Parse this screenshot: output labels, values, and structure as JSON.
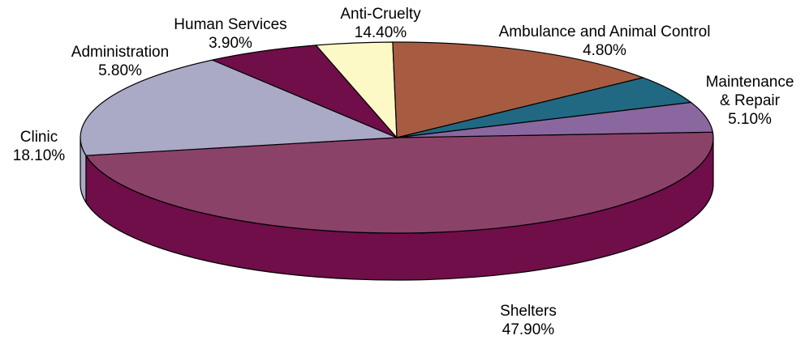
{
  "chart_data": {
    "type": "pie",
    "title": "",
    "slices": [
      {
        "label_lines": [
          "Shelters"
        ],
        "value_text": "47.90%",
        "value": 47.9,
        "color": "#8b4269",
        "side_color": "#6f0e49"
      },
      {
        "label_lines": [
          "Clinic"
        ],
        "value_text": "18.10%",
        "value": 18.1,
        "color": "#aaa9c6",
        "side_color": "#aaa9c6"
      },
      {
        "label_lines": [
          "Administration"
        ],
        "value_text": "5.80%",
        "value": 5.8,
        "color": "#6f0e49",
        "side_color": "#6f0e49"
      },
      {
        "label_lines": [
          "Human Services"
        ],
        "value_text": "3.90%",
        "value": 3.9,
        "color": "#fcf9c6",
        "side_color": "#fcf9c6"
      },
      {
        "label_lines": [
          "Anti-Cruelty"
        ],
        "value_text": "14.40%",
        "value": 14.4,
        "color": "#a75c42",
        "side_color": "#a75c42"
      },
      {
        "label_lines": [
          "Ambulance and Animal Control"
        ],
        "value_text": "4.80%",
        "value": 4.8,
        "color": "#216983",
        "side_color": "#216983"
      },
      {
        "label_lines": [
          "Maintenance",
          "& Repair"
        ],
        "value_text": "5.10%",
        "value": 5.1,
        "color": "#8b67a0",
        "side_color": "#8b67a0"
      }
    ]
  }
}
